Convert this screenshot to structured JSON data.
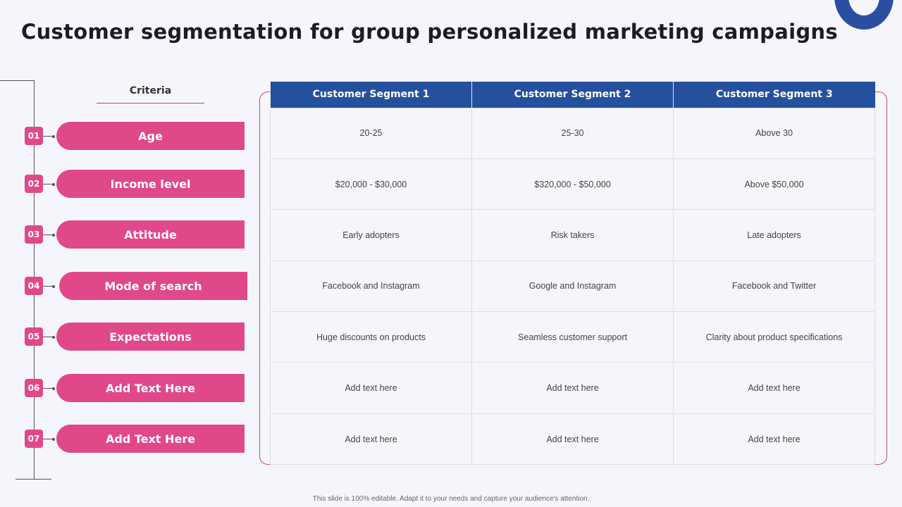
{
  "title": "Customer segmentation for group personalized marketing campaigns",
  "criteria_heading": "Criteria",
  "criteria": [
    {
      "num": "01",
      "label": "Age"
    },
    {
      "num": "02",
      "label": "Income level"
    },
    {
      "num": "03",
      "label": "Attitude"
    },
    {
      "num": "04",
      "label": "Mode of search"
    },
    {
      "num": "05",
      "label": "Expectations"
    },
    {
      "num": "06",
      "label": "Add Text Here"
    },
    {
      "num": "07",
      "label": "Add Text Here"
    }
  ],
  "table": {
    "headers": [
      "Customer Segment 1",
      "Customer Segment 2",
      "Customer Segment 3"
    ],
    "rows": [
      [
        "20-25",
        "25-30",
        "Above  30"
      ],
      [
        "$20,000 - $30,000",
        "$320,000 - $50,000",
        "Above  $50,000"
      ],
      [
        "Early adopters",
        "Risk takers",
        "Late adopters"
      ],
      [
        "Facebook and Instagram",
        "Google and Instagram",
        "Facebook and Twitter"
      ],
      [
        "Huge discounts on products",
        "Seamless customer support",
        "Clarity about product specifications"
      ],
      [
        "Add text here",
        "Add text here",
        "Add text here"
      ],
      [
        "Add text here",
        "Add text here",
        "Add text here"
      ]
    ]
  },
  "footer": "This slide is 100% editable. Adapt it to your needs and capture your audience's attention.",
  "colors": {
    "accent_pink": "#e0488a",
    "header_blue": "#25509e"
  }
}
